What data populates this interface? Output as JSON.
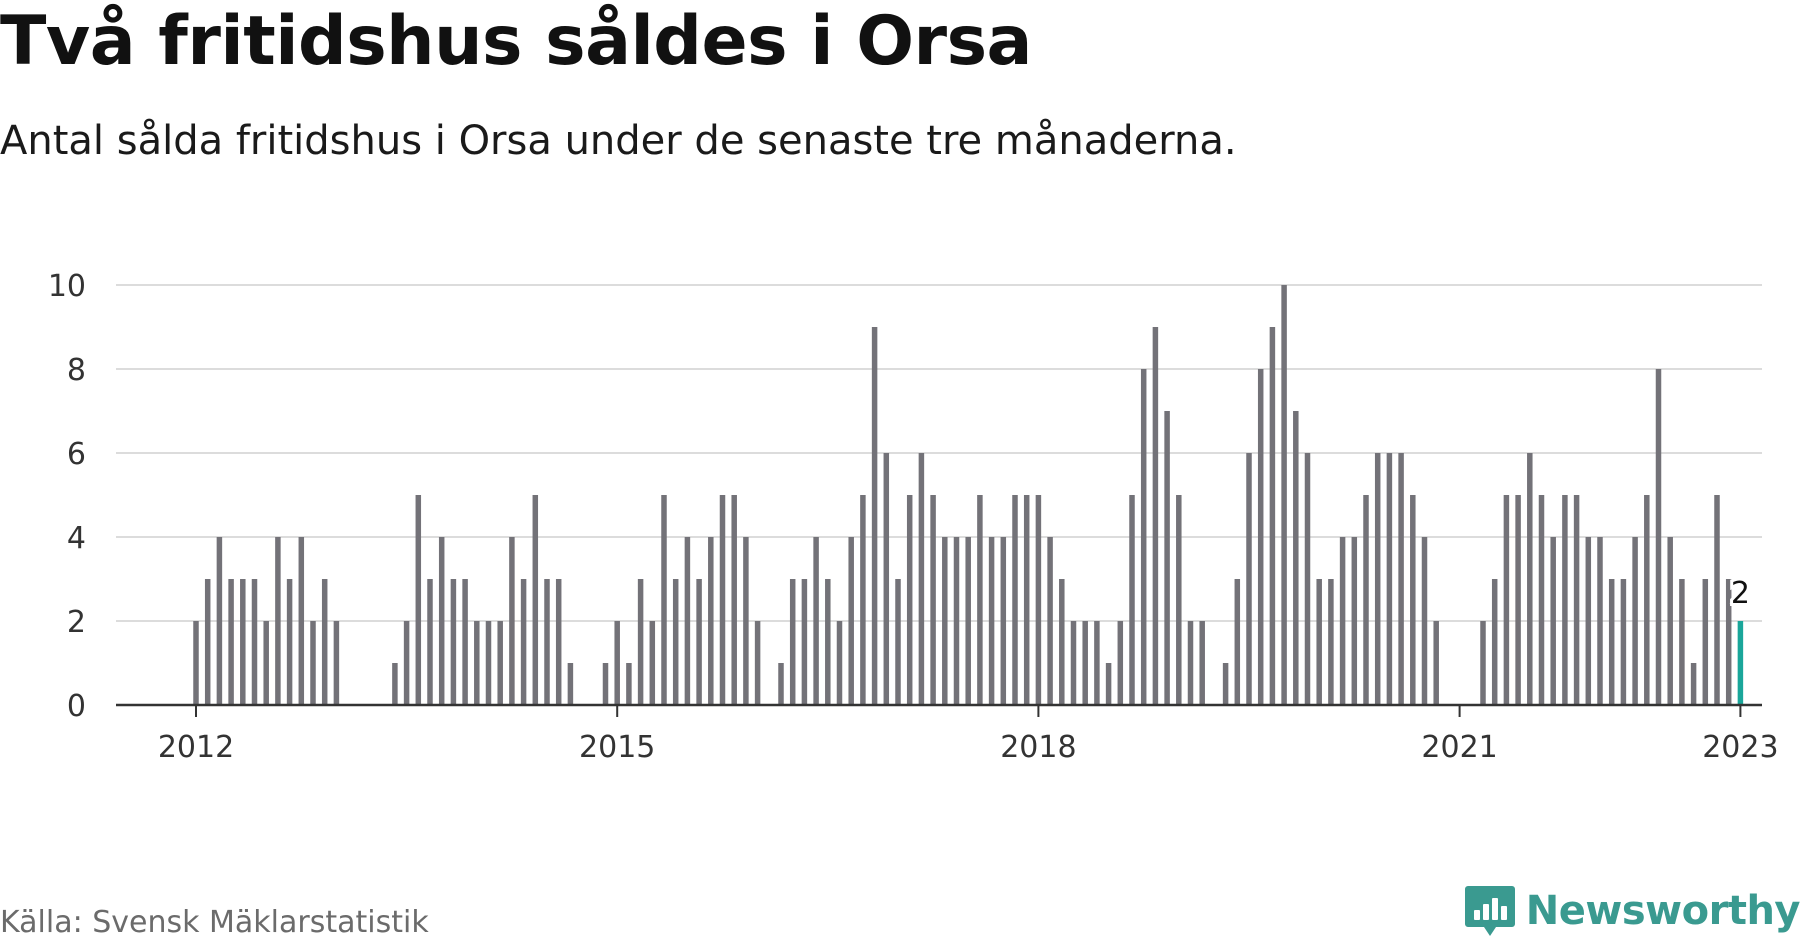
{
  "title": "Två fritidshus såldes i Orsa",
  "subtitle": "Antal sålda fritidshus i Orsa under de senaste tre månaderna.",
  "source": "Källa: Svensk Mäklarstatistik",
  "brand": {
    "name": "Newsworthy",
    "icon": "newsworthy-logo-icon"
  },
  "colors": {
    "bar": "#737278",
    "highlight": "#1aa69a",
    "grid": "#dcdcdc",
    "axis": "#333333"
  },
  "chart_data": {
    "type": "bar",
    "title": "Två fritidshus såldes i Orsa",
    "subtitle": "Antal sålda fritidshus i Orsa under de senaste tre månaderna.",
    "xlabel": "",
    "ylabel": "",
    "ylim": [
      0,
      10
    ],
    "y_ticks": [
      0,
      2,
      4,
      6,
      8,
      10
    ],
    "grid": true,
    "x_start": "2011-01",
    "x_ticks": [
      {
        "label": "2012",
        "date": "2012-01"
      },
      {
        "label": "2015",
        "date": "2015-01"
      },
      {
        "label": "2018",
        "date": "2018-01"
      },
      {
        "label": "2021",
        "date": "2021-01"
      },
      {
        "label": "2023",
        "date": "2023-01"
      }
    ],
    "highlight": {
      "date": "2023-01",
      "value": 2,
      "label": "2"
    },
    "series": [
      {
        "values": [
          {
            "date": "2012-01",
            "value": 2
          },
          {
            "date": "2012-02",
            "value": 3
          },
          {
            "date": "2012-03",
            "value": 4
          },
          {
            "date": "2012-04",
            "value": 3
          },
          {
            "date": "2012-05",
            "value": 3
          },
          {
            "date": "2012-06",
            "value": 3
          },
          {
            "date": "2012-07",
            "value": 2
          },
          {
            "date": "2012-08",
            "value": 4
          },
          {
            "date": "2012-09",
            "value": 3
          },
          {
            "date": "2012-10",
            "value": 4
          },
          {
            "date": "2012-11",
            "value": 2
          },
          {
            "date": "2012-12",
            "value": 3
          },
          {
            "date": "2013-01",
            "value": 2
          },
          {
            "date": "2013-06",
            "value": 1
          },
          {
            "date": "2013-07",
            "value": 2
          },
          {
            "date": "2013-08",
            "value": 5
          },
          {
            "date": "2013-09",
            "value": 3
          },
          {
            "date": "2013-10",
            "value": 4
          },
          {
            "date": "2013-11",
            "value": 3
          },
          {
            "date": "2013-12",
            "value": 3
          },
          {
            "date": "2014-01",
            "value": 2
          },
          {
            "date": "2014-02",
            "value": 2
          },
          {
            "date": "2014-03",
            "value": 2
          },
          {
            "date": "2014-04",
            "value": 4
          },
          {
            "date": "2014-05",
            "value": 3
          },
          {
            "date": "2014-06",
            "value": 5
          },
          {
            "date": "2014-07",
            "value": 3
          },
          {
            "date": "2014-08",
            "value": 3
          },
          {
            "date": "2014-09",
            "value": 1
          },
          {
            "date": "2014-12",
            "value": 1
          },
          {
            "date": "2015-01",
            "value": 2
          },
          {
            "date": "2015-02",
            "value": 1
          },
          {
            "date": "2015-03",
            "value": 3
          },
          {
            "date": "2015-04",
            "value": 2
          },
          {
            "date": "2015-05",
            "value": 5
          },
          {
            "date": "2015-06",
            "value": 3
          },
          {
            "date": "2015-07",
            "value": 4
          },
          {
            "date": "2015-08",
            "value": 3
          },
          {
            "date": "2015-09",
            "value": 4
          },
          {
            "date": "2015-10",
            "value": 5
          },
          {
            "date": "2015-11",
            "value": 5
          },
          {
            "date": "2015-12",
            "value": 4
          },
          {
            "date": "2016-01",
            "value": 2
          },
          {
            "date": "2016-03",
            "value": 1
          },
          {
            "date": "2016-04",
            "value": 3
          },
          {
            "date": "2016-05",
            "value": 3
          },
          {
            "date": "2016-06",
            "value": 4
          },
          {
            "date": "2016-07",
            "value": 3
          },
          {
            "date": "2016-08",
            "value": 2
          },
          {
            "date": "2016-09",
            "value": 4
          },
          {
            "date": "2016-10",
            "value": 5
          },
          {
            "date": "2016-11",
            "value": 9
          },
          {
            "date": "2016-12",
            "value": 6
          },
          {
            "date": "2017-01",
            "value": 3
          },
          {
            "date": "2017-02",
            "value": 5
          },
          {
            "date": "2017-03",
            "value": 6
          },
          {
            "date": "2017-04",
            "value": 5
          },
          {
            "date": "2017-05",
            "value": 4
          },
          {
            "date": "2017-06",
            "value": 4
          },
          {
            "date": "2017-07",
            "value": 4
          },
          {
            "date": "2017-08",
            "value": 5
          },
          {
            "date": "2017-09",
            "value": 4
          },
          {
            "date": "2017-10",
            "value": 4
          },
          {
            "date": "2017-11",
            "value": 5
          },
          {
            "date": "2017-12",
            "value": 5
          },
          {
            "date": "2018-01",
            "value": 5
          },
          {
            "date": "2018-02",
            "value": 4
          },
          {
            "date": "2018-03",
            "value": 3
          },
          {
            "date": "2018-04",
            "value": 2
          },
          {
            "date": "2018-05",
            "value": 2
          },
          {
            "date": "2018-06",
            "value": 2
          },
          {
            "date": "2018-07",
            "value": 1
          },
          {
            "date": "2018-08",
            "value": 2
          },
          {
            "date": "2018-09",
            "value": 5
          },
          {
            "date": "2018-10",
            "value": 8
          },
          {
            "date": "2018-11",
            "value": 9
          },
          {
            "date": "2018-12",
            "value": 7
          },
          {
            "date": "2019-01",
            "value": 5
          },
          {
            "date": "2019-02",
            "value": 2
          },
          {
            "date": "2019-03",
            "value": 2
          },
          {
            "date": "2019-05",
            "value": 1
          },
          {
            "date": "2019-06",
            "value": 3
          },
          {
            "date": "2019-07",
            "value": 6
          },
          {
            "date": "2019-08",
            "value": 8
          },
          {
            "date": "2019-09",
            "value": 9
          },
          {
            "date": "2019-10",
            "value": 10
          },
          {
            "date": "2019-11",
            "value": 7
          },
          {
            "date": "2019-12",
            "value": 6
          },
          {
            "date": "2020-01",
            "value": 3
          },
          {
            "date": "2020-02",
            "value": 3
          },
          {
            "date": "2020-03",
            "value": 4
          },
          {
            "date": "2020-04",
            "value": 4
          },
          {
            "date": "2020-05",
            "value": 5
          },
          {
            "date": "2020-06",
            "value": 6
          },
          {
            "date": "2020-07",
            "value": 6
          },
          {
            "date": "2020-08",
            "value": 6
          },
          {
            "date": "2020-09",
            "value": 5
          },
          {
            "date": "2020-10",
            "value": 4
          },
          {
            "date": "2020-11",
            "value": 2
          },
          {
            "date": "2021-03",
            "value": 2
          },
          {
            "date": "2021-04",
            "value": 3
          },
          {
            "date": "2021-05",
            "value": 5
          },
          {
            "date": "2021-06",
            "value": 5
          },
          {
            "date": "2021-07",
            "value": 6
          },
          {
            "date": "2021-08",
            "value": 5
          },
          {
            "date": "2021-09",
            "value": 4
          },
          {
            "date": "2021-10",
            "value": 5
          },
          {
            "date": "2021-11",
            "value": 5
          },
          {
            "date": "2021-12",
            "value": 4
          },
          {
            "date": "2022-01",
            "value": 4
          },
          {
            "date": "2022-02",
            "value": 3
          },
          {
            "date": "2022-03",
            "value": 3
          },
          {
            "date": "2022-04",
            "value": 4
          },
          {
            "date": "2022-05",
            "value": 5
          },
          {
            "date": "2022-06",
            "value": 8
          },
          {
            "date": "2022-07",
            "value": 4
          },
          {
            "date": "2022-08",
            "value": 3
          },
          {
            "date": "2022-09",
            "value": 1
          },
          {
            "date": "2022-10",
            "value": 3
          },
          {
            "date": "2022-11",
            "value": 5
          },
          {
            "date": "2022-12",
            "value": 3
          },
          {
            "date": "2023-01",
            "value": 2
          }
        ]
      }
    ]
  }
}
